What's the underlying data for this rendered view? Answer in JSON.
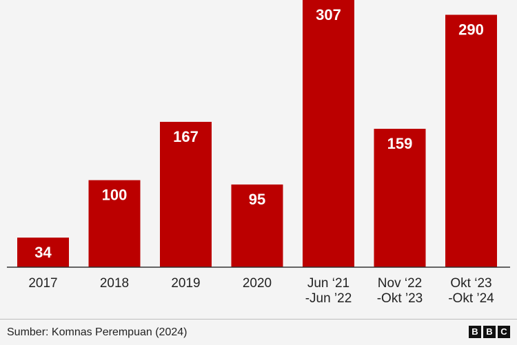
{
  "chart_data": {
    "type": "bar",
    "categories": [
      [
        "2017"
      ],
      [
        "2018"
      ],
      [
        "2019"
      ],
      [
        "2020"
      ],
      [
        "Jun ‘21",
        "-Jun ’22"
      ],
      [
        "Nov ‘22",
        "-Okt ’23"
      ],
      [
        "Okt ‘23",
        "-Okt ’24"
      ]
    ],
    "values": [
      34,
      100,
      167,
      95,
      307,
      159,
      290
    ],
    "ylim": [
      0,
      307
    ],
    "grid": false,
    "bar_color": "#bb0000"
  },
  "footer": {
    "source": "Sumber: Komnas Perempuan (2024)",
    "logo_letters": [
      "B",
      "B",
      "C"
    ]
  }
}
